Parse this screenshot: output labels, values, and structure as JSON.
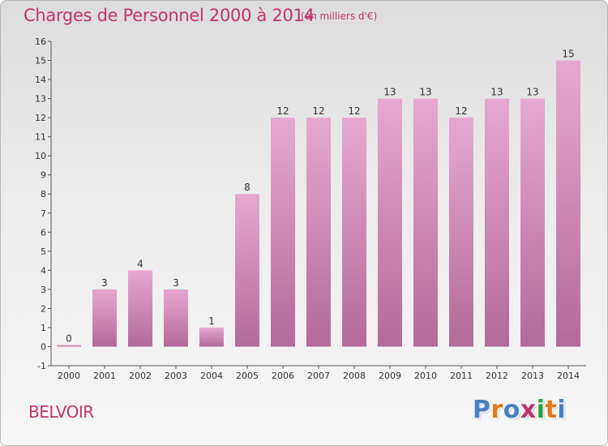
{
  "header": {
    "title": "Charges de Personnel 2000 à 2014",
    "subtitle": "(en milliers d'€)"
  },
  "footer": {
    "place": "BELVOIR",
    "logo_text": "Proxiti"
  },
  "colors": {
    "bar_top": "#e6a8cf",
    "bar_bottom": "#b36a98",
    "text_accent": "#c0336e",
    "logo": [
      "#4a7fc1",
      "#e07a1f",
      "#4a7fc1",
      "#c0336e",
      "#2f9e44",
      "#e07a1f",
      "#4a7fc1"
    ]
  },
  "chart_data": {
    "type": "bar",
    "title": "Charges de Personnel 2000 à 2014",
    "categories": [
      "2000",
      "2001",
      "2002",
      "2003",
      "2004",
      "2005",
      "2006",
      "2007",
      "2008",
      "2009",
      "2010",
      "2011",
      "2012",
      "2013",
      "2014"
    ],
    "values": [
      0,
      3,
      4,
      3,
      1,
      8,
      12,
      12,
      12,
      13,
      13,
      12,
      13,
      13,
      15
    ],
    "ylim": [
      -1,
      16
    ],
    "yticks": [
      -1,
      0,
      1,
      2,
      3,
      4,
      5,
      6,
      7,
      8,
      9,
      10,
      11,
      12,
      13,
      14,
      15,
      16
    ],
    "grid": false,
    "xlabel": "",
    "ylabel": ""
  }
}
